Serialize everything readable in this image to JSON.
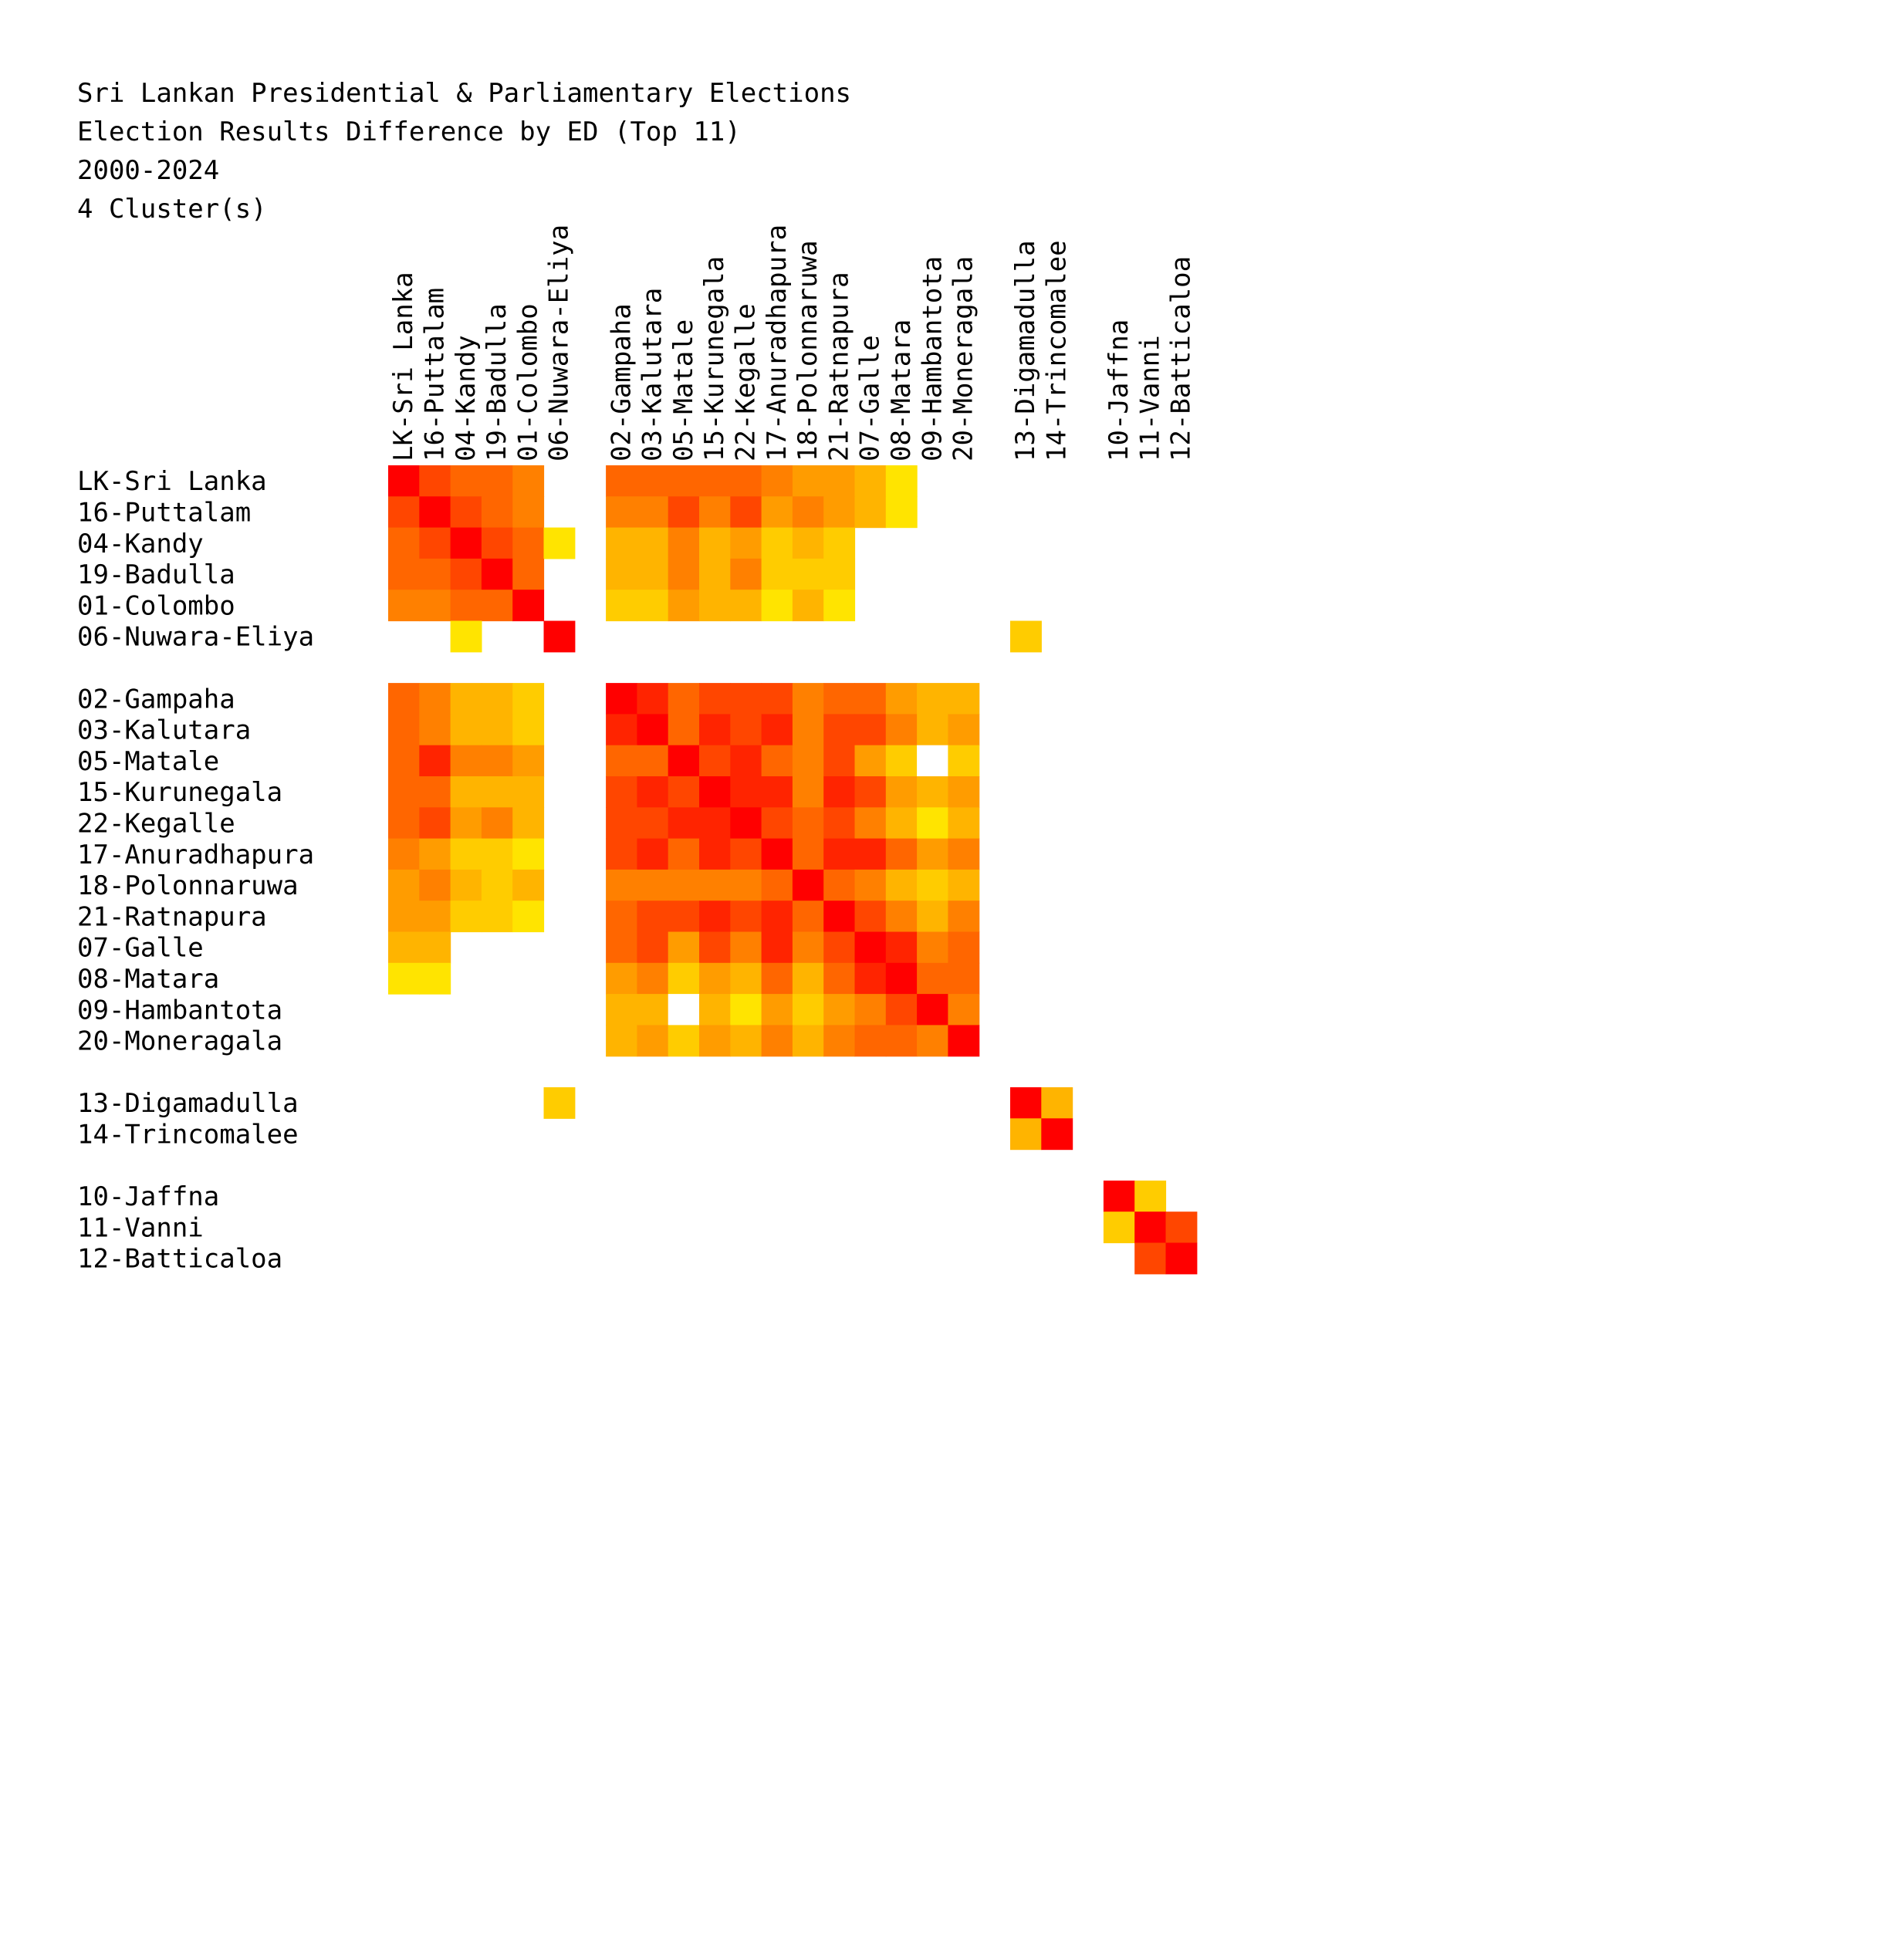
{
  "chart_data": {
    "type": "heatmap",
    "title_lines": [
      "Sri Lankan Presidential & Parliamentary Elections",
      "Election Results Difference by ED (Top 11)",
      "2000-2024",
      "4 Cluster(s)"
    ],
    "clusters": [
      {
        "labels": [
          "LK-Sri Lanka",
          "16-Puttalam",
          "04-Kandy",
          "19-Badulla",
          "01-Colombo",
          "06-Nuwara-Eliya"
        ]
      },
      {
        "labels": [
          "02-Gampaha",
          "03-Kalutara",
          "05-Matale",
          "15-Kurunegala",
          "22-Kegalle",
          "17-Anuradhapura",
          "18-Polonnaruwa",
          "21-Ratnapura",
          "07-Galle",
          "08-Matara",
          "09-Hambantota",
          "20-Moneragala"
        ]
      },
      {
        "labels": [
          "13-Digamadulla",
          "14-Trincomalee"
        ]
      },
      {
        "labels": [
          "10-Jaffna",
          "11-Vanni",
          "12-Batticaloa"
        ]
      }
    ],
    "color_scale": {
      "description": "cell color encodes similarity rank; blank cells are not in top 11",
      "levels": {
        "0": "#ff0000",
        "1": "#ff2400",
        "2": "#ff4600",
        "3": "#ff6600",
        "4": "#ff8000",
        "5": "#ff9c00",
        "6": "#ffb400",
        "7": "#ffcc00",
        "8": "#ffe400",
        "9": "#ffffff"
      }
    },
    "matrix": [
      "0233344444556788..................",
      "2023344624456788..................",
      "3302336.66466775678...............",
      "33303..66466577.77................",
      "44330..7756677.876................",
      "..8..0..................7.........",
      "444466..0234444354666.............",
      "444477..2043313344646.............",
      "3233333..4402334434679.............",
      "333377..32201233223557............",
      "332436..3321223433257.............",
      "465577..331300444245634...........",
      "66767.6..444440435678.............",
      "5667778..33324301463657...........",
      "66........43423342316644..........",
      "88........54765544201344..........",
      "..........669687757340.4..........",
      "..........6575565734330..........."
    ],
    "matrix_note": "matrix rows are encoded by the page script below; this string form is illustrative only"
  }
}
